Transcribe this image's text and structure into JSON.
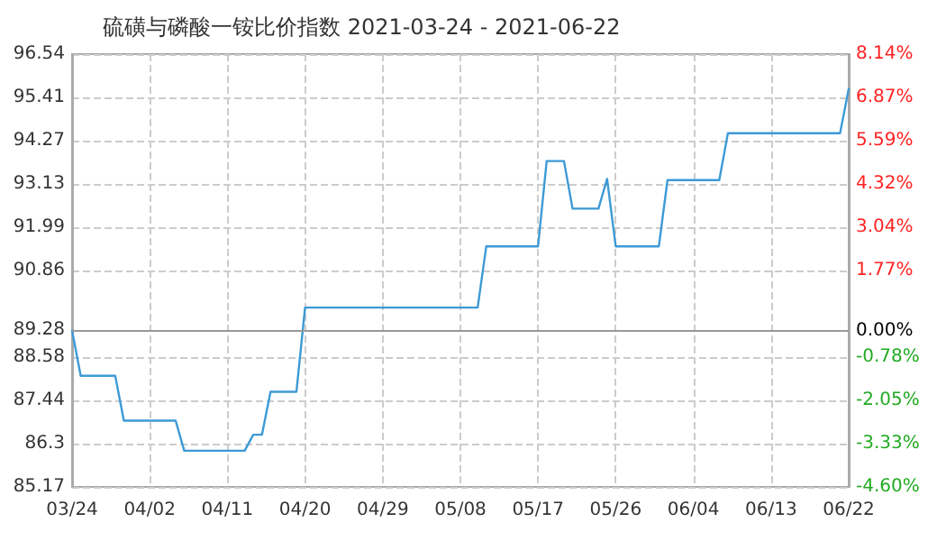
{
  "chart_data": {
    "type": "line",
    "title": "硫磺与磷酸一铵比价指数 2021-03-24 - 2021-06-22",
    "x": [
      "--03-24",
      "--03-25",
      "--03-29",
      "--03-30",
      "--04-05",
      "--04-06",
      "--04-13",
      "--04-14",
      "--04-15",
      "--04-16",
      "--04-19",
      "--04-20",
      "--05-10",
      "--05-11",
      "--05-17",
      "--05-18",
      "--05-20",
      "--05-21",
      "--05-24",
      "--05-25",
      "--05-26",
      "--05-31",
      "--06-01",
      "--06-07",
      "--06-08",
      "--06-21",
      "--06-22"
    ],
    "series": [
      {
        "color": "#3d9ad6",
        "values": [
          89.28,
          88.09,
          88.09,
          86.91,
          86.91,
          86.12,
          86.12,
          86.54,
          86.54,
          87.67,
          87.67,
          89.88,
          89.88,
          91.49,
          91.49,
          93.73,
          93.73,
          92.48,
          92.48,
          93.26,
          91.49,
          91.49,
          93.23,
          93.23,
          94.46,
          94.46,
          95.63
        ]
      }
    ],
    "xlim": [
      "--03-24",
      "--06-22"
    ],
    "xticks": [
      {
        "value": "--03-24",
        "label": "03/24"
      },
      {
        "value": "--04-02",
        "label": "04/02"
      },
      {
        "value": "--04-11",
        "label": "04/11"
      },
      {
        "value": "--04-20",
        "label": "04/20"
      },
      {
        "value": "--04-29",
        "label": "04/29"
      },
      {
        "value": "--05-08",
        "label": "05/08"
      },
      {
        "value": "--05-17",
        "label": "05/17"
      },
      {
        "value": "--05-26",
        "label": "05/26"
      },
      {
        "value": "--06-04",
        "label": "06/04"
      },
      {
        "value": "--06-13",
        "label": "06/13"
      },
      {
        "value": "--06-22",
        "label": "06/22"
      }
    ],
    "ylim": [
      85.17,
      96.54
    ],
    "yticks": [
      85.17,
      86.3,
      87.44,
      88.58,
      89.28,
      90.86,
      91.99,
      93.13,
      94.27,
      95.41,
      96.54
    ],
    "y2lim": [
      -4.6,
      8.14
    ],
    "y2ticks": [
      {
        "value": -4.6,
        "label": "-4.60%"
      },
      {
        "value": -3.33,
        "label": "-3.33%"
      },
      {
        "value": -2.05,
        "label": "-2.05%"
      },
      {
        "value": -0.78,
        "label": "-0.78%"
      },
      {
        "value": 0,
        "label": "0.00%"
      },
      {
        "value": 1.77,
        "label": "1.77%"
      },
      {
        "value": 3.04,
        "label": "3.04%"
      },
      {
        "value": 4.32,
        "label": "4.32%"
      },
      {
        "value": 5.59,
        "label": "5.59%"
      },
      {
        "value": 6.87,
        "label": "6.87%"
      },
      {
        "value": 8.14,
        "label": "8.14%"
      }
    ],
    "ref_lines": [
      {
        "axis": "y",
        "value": 89.28,
        "color": "#999999"
      }
    ],
    "grid": true,
    "marker": "none",
    "line_style": "solid"
  }
}
